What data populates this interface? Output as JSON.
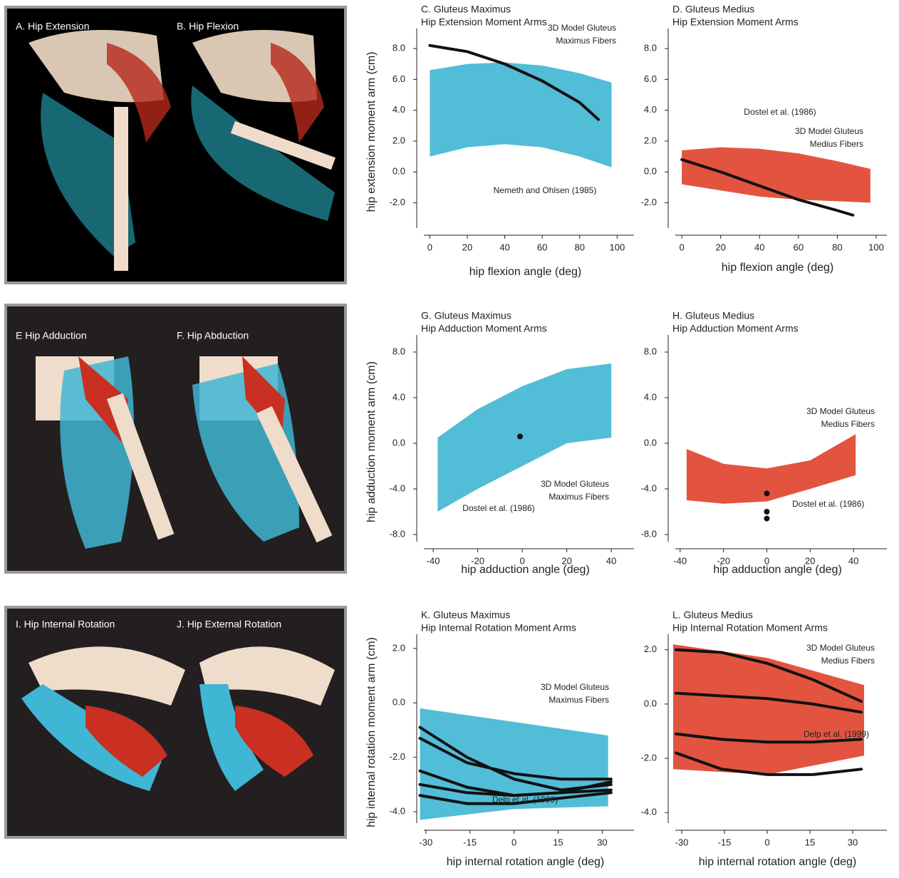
{
  "image_panels": [
    {
      "labels": [
        "A. Hip Extension",
        "B. Hip Flexion"
      ]
    },
    {
      "labels": [
        "E  Hip Adduction",
        "F. Hip Abduction"
      ]
    },
    {
      "labels": [
        "I. Hip Internal Rotation",
        "J. Hip External Rotation"
      ]
    }
  ],
  "chart_data": [
    {
      "type": "band-line",
      "title": "C. Gluteus Maximus",
      "subtitle": "Hip Extension Moment Arms",
      "ylabel": "hip extension moment arm (cm)",
      "xlabel": "hip flexion angle (deg)",
      "xlim": [
        -7,
        109
      ],
      "xticks": [
        0,
        20,
        40,
        60,
        80,
        100
      ],
      "ylim": [
        -4.1,
        9.3
      ],
      "yticks": [
        {
          "value": -2,
          "label": "-2.0"
        },
        {
          "value": 0,
          "label": "0.0"
        },
        {
          "value": 2,
          "label": "2.0"
        },
        {
          "value": 4,
          "label": "4.0"
        },
        {
          "value": 6,
          "label": "6.0"
        },
        {
          "value": 8,
          "label": "8.0"
        }
      ],
      "fibers": {
        "label_lines": [
          "3D Model Gluteus",
          "Maximus Fibers"
        ],
        "color": "#3fb6d3",
        "x": [
          0,
          20,
          40,
          60,
          80,
          97
        ],
        "upper": [
          6.6,
          7.0,
          7.1,
          6.9,
          6.4,
          5.8
        ],
        "lower": [
          1.0,
          1.6,
          1.8,
          1.6,
          1.0,
          0.3
        ]
      },
      "reference": {
        "label": "Nemeth and Ohlsen (1985)",
        "type": "line",
        "color": "#111111",
        "x": [
          0,
          20,
          40,
          60,
          80,
          90
        ],
        "curves": [
          [
            8.2,
            7.8,
            7.0,
            5.9,
            4.5,
            3.4
          ]
        ]
      }
    },
    {
      "type": "band-line",
      "title": "D. Gluteus Medius",
      "subtitle": "Hip Extension Moment Arms",
      "xlabel": "hip flexion angle (deg)",
      "xlim": [
        -7,
        105.5
      ],
      "xticks": [
        0,
        20,
        40,
        60,
        80,
        100
      ],
      "ylim": [
        -4.1,
        9.3
      ],
      "yticks": [
        {
          "value": -2,
          "label": "-2.0"
        },
        {
          "value": 0,
          "label": "0.0"
        },
        {
          "value": 2,
          "label": "2.0"
        },
        {
          "value": 4,
          "label": "4.0"
        },
        {
          "value": 6,
          "label": "6.0"
        },
        {
          "value": 8,
          "label": "8.0"
        }
      ],
      "fibers": {
        "label_lines": [
          "3D Model Gluteus",
          "Medius Fibers"
        ],
        "color": "#e0412b",
        "x": [
          0,
          20,
          40,
          60,
          80,
          97
        ],
        "upper": [
          1.4,
          1.6,
          1.5,
          1.2,
          0.7,
          0.2
        ],
        "lower": [
          -0.8,
          -1.2,
          -1.6,
          -1.8,
          -1.9,
          -2.0
        ]
      },
      "reference": {
        "label": "Dostel et al. (1986)",
        "type": "line",
        "color": "#111111",
        "x": [
          0,
          20,
          40,
          60,
          80,
          88
        ],
        "curves": [
          [
            0.8,
            0.0,
            -0.9,
            -1.8,
            -2.5,
            -2.8
          ]
        ]
      }
    },
    {
      "type": "band-line",
      "title": "G. Gluteus Maximus",
      "subtitle": "Hip Adduction Moment Arms",
      "ylabel": "hip adduction moment arm (cm)",
      "xlabel": "hip adduction angle (deg)",
      "xlim": [
        -47.4,
        50.2
      ],
      "xticks": [
        -40,
        -20,
        0,
        20,
        40
      ],
      "ylim": [
        -9.25,
        9.5
      ],
      "yticks": [
        {
          "value": -8,
          "label": "-8.0"
        },
        {
          "value": -4,
          "label": "-4.0"
        },
        {
          "value": 0,
          "label": "0.0"
        },
        {
          "value": 4,
          "label": "4.0"
        },
        {
          "value": 8,
          "label": "8.0"
        }
      ],
      "fibers": {
        "label_lines": [
          "3D Model Gluteus",
          "Maximus Fibers"
        ],
        "color": "#3fb6d3",
        "x": [
          -38,
          -20,
          0,
          20,
          40
        ],
        "upper": [
          0.5,
          3.0,
          5.0,
          6.5,
          7.0
        ],
        "lower": [
          -6.0,
          -4.0,
          -2.0,
          0.0,
          0.5
        ]
      },
      "reference": {
        "label": "Dostel et al. (1986)",
        "type": "point",
        "color": "#111111",
        "x": [
          -1
        ],
        "points": [
          0.6
        ]
      }
    },
    {
      "type": "band-line",
      "title": "H. Gluteus Medius",
      "subtitle": "Hip Adduction Moment Arms",
      "xlabel": "hip adduction angle (deg)",
      "xlim": [
        -45.5,
        55.4
      ],
      "xticks": [
        -40,
        -20,
        0,
        20,
        40
      ],
      "ylim": [
        -9.25,
        9.5
      ],
      "yticks": [
        {
          "value": -8,
          "label": "-8.0"
        },
        {
          "value": -4,
          "label": "-4.0"
        },
        {
          "value": 0,
          "label": "0.0"
        },
        {
          "value": 4,
          "label": "4.0"
        },
        {
          "value": 8,
          "label": "8.0"
        }
      ],
      "fibers": {
        "label_lines": [
          "3D Model Gluteus",
          "Medius Fibers"
        ],
        "color": "#e0412b",
        "x": [
          -37,
          -20,
          0,
          20,
          41
        ],
        "upper": [
          -0.5,
          -1.8,
          -2.2,
          -1.5,
          0.8
        ],
        "lower": [
          -5.0,
          -5.3,
          -5.1,
          -4.0,
          -2.8
        ]
      },
      "reference": {
        "label": "Dostel et al. (1986)",
        "type": "point",
        "color": "#111111",
        "x": [
          0,
          0,
          0
        ],
        "points": [
          -4.4,
          -6.0,
          -6.6
        ]
      }
    },
    {
      "type": "band-line",
      "title": "K. Gluteus Maximus",
      "subtitle": "Hip Internal Rotation Moment Arms",
      "ylabel": "hip internal rotation moment arm (cm)",
      "xlabel": "hip internal rotation angle (deg)",
      "xlim": [
        -33.1,
        40.8
      ],
      "xticks": [
        -30,
        -15,
        0,
        15,
        30
      ],
      "ylim": [
        -4.68,
        2.52
      ],
      "yticks": [
        {
          "value": -4,
          "label": "-4.0"
        },
        {
          "value": -2,
          "label": "-2.0"
        },
        {
          "value": 0,
          "label": "0.0"
        },
        {
          "value": 2,
          "label": "2.0"
        }
      ],
      "fibers": {
        "label_lines": [
          "3D Model Gluteus",
          "Maximus Fibers"
        ],
        "color": "#3fb6d3",
        "x": [
          -32,
          0,
          32
        ],
        "upper": [
          -0.2,
          -0.7,
          -1.2
        ],
        "lower": [
          -4.3,
          -3.9,
          -3.8
        ]
      },
      "reference": {
        "label": "Delp et al. (1999)",
        "type": "line",
        "color": "#111111",
        "x": [
          -32,
          -16,
          0,
          16,
          33
        ],
        "curves": [
          [
            -0.9,
            -2.0,
            -2.8,
            -3.2,
            -3.0
          ],
          [
            -1.3,
            -2.2,
            -2.6,
            -2.8,
            -2.8
          ],
          [
            -2.5,
            -3.1,
            -3.4,
            -3.3,
            -2.9
          ],
          [
            -3.0,
            -3.3,
            -3.4,
            -3.3,
            -3.2
          ],
          [
            -3.4,
            -3.7,
            -3.7,
            -3.5,
            -3.3
          ]
        ]
      }
    },
    {
      "type": "band-line",
      "title": "L. Gluteus Medius",
      "subtitle": "Hip Internal Rotation Moment Arms",
      "xlabel": "hip internal rotation angle (deg)",
      "xlim": [
        -34.75,
        42
      ],
      "xticks": [
        -30,
        -15,
        0,
        15,
        30
      ],
      "ylim": [
        -4.65,
        2.57
      ],
      "yticks": [
        {
          "value": -4,
          "label": "-4.0"
        },
        {
          "value": -2,
          "label": "-2.0"
        },
        {
          "value": 0,
          "label": "0.0"
        },
        {
          "value": 2,
          "label": "2.0"
        }
      ],
      "fibers": {
        "label_lines": [
          "3D Model Gluteus",
          "Medius Fibers"
        ],
        "color": "#e0412b",
        "x": [
          -33,
          0,
          34
        ],
        "upper": [
          2.2,
          1.7,
          0.7
        ],
        "lower": [
          -2.4,
          -2.6,
          -1.9
        ]
      },
      "reference": {
        "label": "Delp et al. (1999)",
        "type": "line",
        "color": "#111111",
        "x": [
          -32,
          -16,
          0,
          16,
          33
        ],
        "curves": [
          [
            2.0,
            1.9,
            1.5,
            0.9,
            0.1
          ],
          [
            0.4,
            0.3,
            0.2,
            0.0,
            -0.3
          ],
          [
            -1.1,
            -1.3,
            -1.4,
            -1.4,
            -1.3
          ],
          [
            -1.8,
            -2.4,
            -2.6,
            -2.6,
            -2.4
          ]
        ]
      }
    }
  ]
}
